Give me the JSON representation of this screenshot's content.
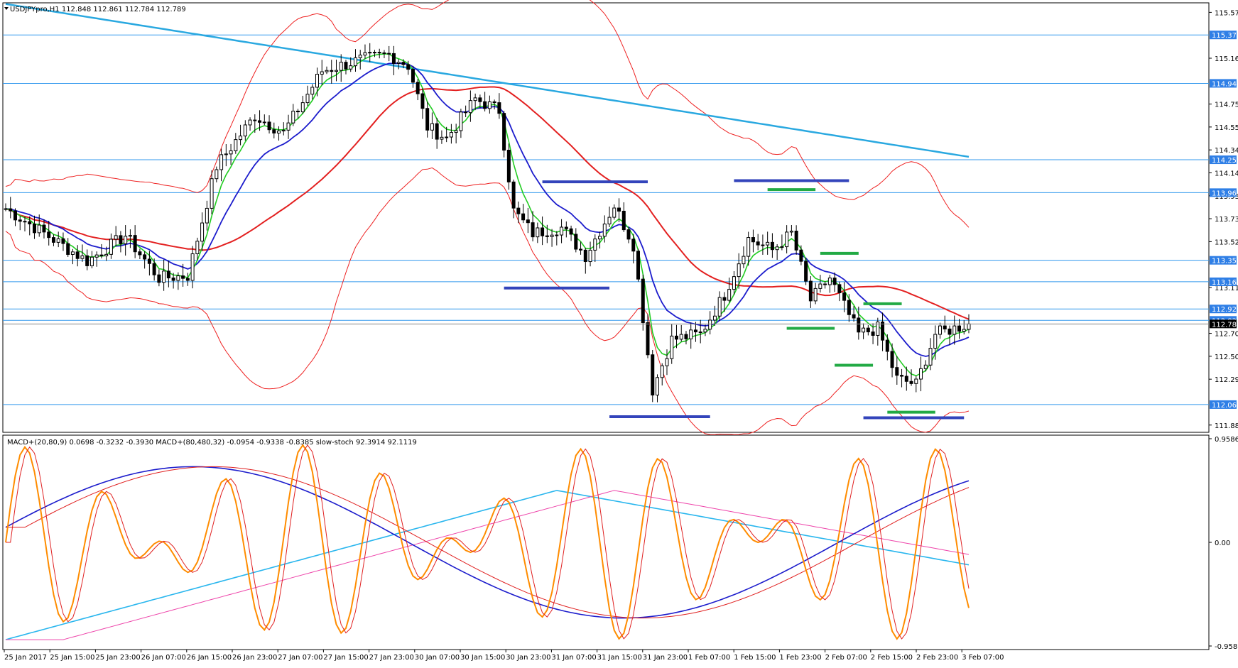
{
  "chart_data": {
    "type": "candlestick",
    "symbol_line": "USDJPYpro,H1  112.848 112.861 112.784 112.789",
    "indicator_line": "MACD+(20,80,9) 0.0698 -0.3232 -0.3930  MACD+(80,480,32) -0.0954 -0.9338 -0.8385  slow-stoch 92.3914 92.1119",
    "price_ylim": [
      111.82,
      115.66
    ],
    "price_ticks": [
      "115.575",
      "115.165",
      "114.755",
      "114.550",
      "114.345",
      "114.140",
      "113.935",
      "113.730",
      "113.525",
      "113.115",
      "112.705",
      "112.500",
      "112.295",
      "111.885"
    ],
    "level_lines": [
      "115.373",
      "114.940",
      "114.257",
      "113.963",
      "113.358",
      "113.166",
      "112.923",
      "112.821",
      "112.068"
    ],
    "current_price": "112.789",
    "indicator_ylim": [
      -0.9586,
      0.9586
    ],
    "indicator_ticks": [
      "0.9586",
      "0.00",
      "-0.9586"
    ],
    "x_labels": [
      "25 Jan 2017",
      "25 Jan 15:00",
      "25 Jan 23:00",
      "26 Jan 07:00",
      "26 Jan 15:00",
      "26 Jan 23:00",
      "27 Jan 07:00",
      "27 Jan 15:00",
      "27 Jan 23:00",
      "30 Jan 07:00",
      "30 Jan 15:00",
      "30 Jan 23:00",
      "31 Jan 07:00",
      "31 Jan 15:00",
      "31 Jan 23:00",
      "1 Feb 07:00",
      "1 Feb 15:00",
      "1 Feb 23:00",
      "2 Feb 07:00",
      "2 Feb 15:00",
      "2 Feb 23:00",
      "3 Feb 07:00"
    ],
    "bars": 202,
    "ohlc_keypoints": [
      {
        "bar": 0,
        "price": 113.82
      },
      {
        "bar": 8,
        "price": 113.6
      },
      {
        "bar": 17,
        "price": 113.35
      },
      {
        "bar": 25,
        "price": 113.58
      },
      {
        "bar": 32,
        "price": 113.2
      },
      {
        "bar": 38,
        "price": 113.22
      },
      {
        "bar": 44,
        "price": 114.2
      },
      {
        "bar": 52,
        "price": 114.65
      },
      {
        "bar": 58,
        "price": 114.5
      },
      {
        "bar": 66,
        "price": 115.05
      },
      {
        "bar": 74,
        "price": 115.15
      },
      {
        "bar": 80,
        "price": 115.2
      },
      {
        "bar": 84,
        "price": 115.1
      },
      {
        "bar": 88,
        "price": 114.55
      },
      {
        "bar": 92,
        "price": 114.45
      },
      {
        "bar": 98,
        "price": 114.8
      },
      {
        "bar": 103,
        "price": 114.7
      },
      {
        "bar": 106,
        "price": 113.8
      },
      {
        "bar": 110,
        "price": 113.6
      },
      {
        "bar": 116,
        "price": 113.65
      },
      {
        "bar": 121,
        "price": 113.4
      },
      {
        "bar": 127,
        "price": 113.85
      },
      {
        "bar": 131,
        "price": 113.5
      },
      {
        "bar": 135,
        "price": 112.2
      },
      {
        "bar": 139,
        "price": 112.65
      },
      {
        "bar": 145,
        "price": 112.7
      },
      {
        "bar": 150,
        "price": 113.05
      },
      {
        "bar": 155,
        "price": 113.55
      },
      {
        "bar": 160,
        "price": 113.45
      },
      {
        "bar": 164,
        "price": 113.6
      },
      {
        "bar": 168,
        "price": 113.0
      },
      {
        "bar": 172,
        "price": 113.2
      },
      {
        "bar": 178,
        "price": 112.7
      },
      {
        "bar": 182,
        "price": 112.75
      },
      {
        "bar": 186,
        "price": 112.3
      },
      {
        "bar": 190,
        "price": 112.25
      },
      {
        "bar": 194,
        "price": 112.7
      },
      {
        "bar": 198,
        "price": 112.75
      },
      {
        "bar": 201,
        "price": 112.79
      }
    ],
    "support_resistance_blue": [
      {
        "from_bar": 112,
        "to_bar": 134,
        "price": 114.06
      },
      {
        "from_bar": 104,
        "to_bar": 126,
        "price": 113.11
      },
      {
        "from_bar": 126,
        "to_bar": 147,
        "price": 111.96
      },
      {
        "from_bar": 152,
        "to_bar": 176,
        "price": 114.07
      },
      {
        "from_bar": 179,
        "to_bar": 200,
        "price": 111.95
      }
    ],
    "support_resistance_green": [
      {
        "from_bar": 159,
        "to_bar": 169,
        "price": 113.99
      },
      {
        "from_bar": 170,
        "to_bar": 178,
        "price": 113.42
      },
      {
        "from_bar": 163,
        "to_bar": 173,
        "price": 112.75
      },
      {
        "from_bar": 179,
        "to_bar": 187,
        "price": 112.97
      },
      {
        "from_bar": 173,
        "to_bar": 181,
        "price": 112.42
      },
      {
        "from_bar": 184,
        "to_bar": 194,
        "price": 112.0
      }
    ],
    "overlays": [
      {
        "name": "long-ma",
        "color": "#29a8e0"
      },
      {
        "name": "mid-ma",
        "color": "#e32020"
      },
      {
        "name": "fast-ma",
        "color": "#1c1ccc"
      },
      {
        "name": "smooth-ma",
        "color": "#22cc22"
      },
      {
        "name": "band",
        "color": "#ee2222"
      }
    ],
    "colors": {
      "up": "#ffffff",
      "down": "#000000",
      "level": "#3399ee",
      "sr_blue": "#3344bb",
      "sr_green": "#22aa44",
      "stoch": "#ff8c00",
      "stoch_signal": "#e02020",
      "macd_fast": "#1c1ccc",
      "macd_slow": "#29b6ee",
      "macd_slow_signal": "#ee44aa",
      "axis_label_bg": "#2f7fe6"
    }
  }
}
